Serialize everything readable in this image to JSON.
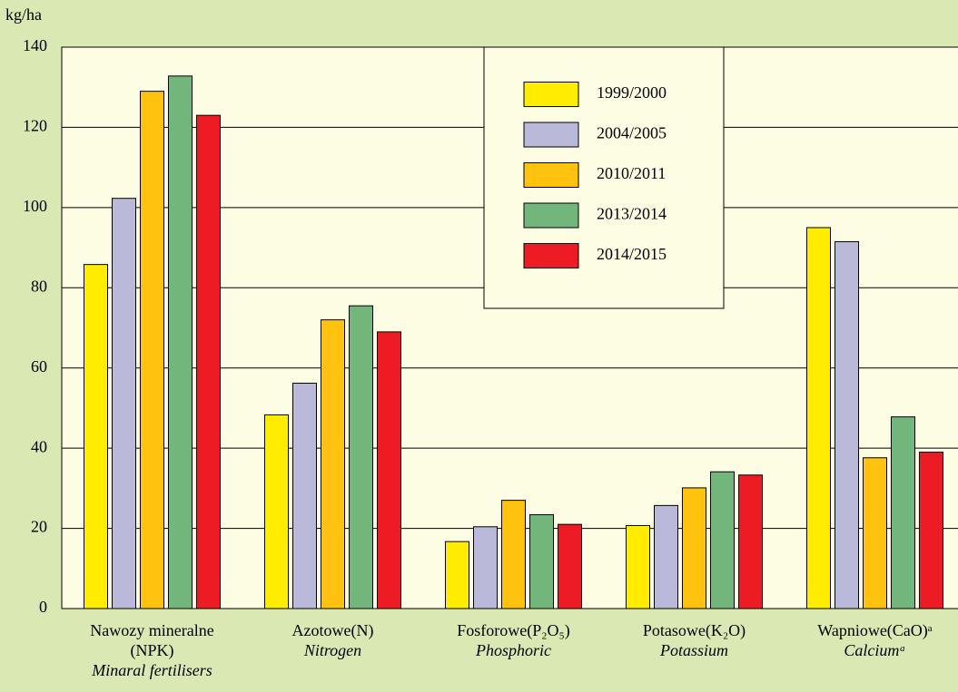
{
  "chart_data": {
    "type": "bar",
    "y_label": "kg/ha",
    "categories": [
      "Nawozy mineralne (NPK)",
      "Azotowe(N)",
      "Fosforowe(P₂O₅)",
      "Potasowe(K₂O)",
      "Wapniowe(CaO)ᵃ"
    ],
    "category_subtitles": [
      "Minaral fertilisers",
      "Nitrogen",
      "Phosphoric",
      "Potassium",
      "Calciumᵃ"
    ],
    "series": [
      {
        "name": "1999/2000",
        "color": "#ffec00",
        "values": [
          85.8,
          48.3,
          16.7,
          20.7,
          95
        ]
      },
      {
        "name": "2004/2005",
        "color": "#bab9d9",
        "values": [
          102.3,
          56.2,
          20.4,
          25.7,
          91.5
        ]
      },
      {
        "name": "2010/2011",
        "color": "#ffc20e",
        "values": [
          129,
          72,
          27,
          30.1,
          37.6
        ]
      },
      {
        "name": "2013/2014",
        "color": "#72b67c",
        "values": [
          132.8,
          75.5,
          23.4,
          34.1,
          47.8
        ]
      },
      {
        "name": "2014/2015",
        "color": "#ed1c24",
        "values": [
          123,
          69,
          21,
          33.3,
          39
        ]
      }
    ],
    "ylim": [
      0,
      140
    ],
    "yticks": [
      0,
      20,
      40,
      60,
      80,
      100,
      120,
      140
    ],
    "grid": true,
    "legend": "upper-center"
  }
}
